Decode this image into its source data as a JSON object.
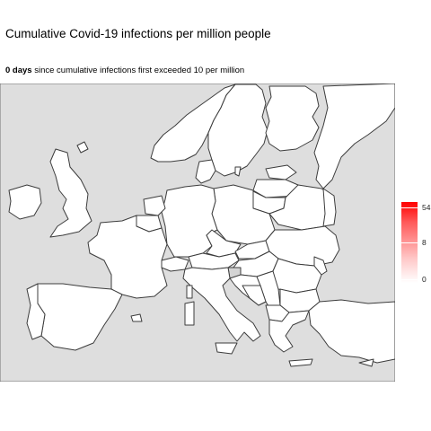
{
  "title": "Cumulative Covid-19 infections per million people",
  "subtitle": {
    "bold": "0 days",
    "rest": " since cumulative infections first exceeded 10 per million"
  },
  "legend": {
    "ticks": [
      "54",
      "8",
      "0"
    ],
    "colors": {
      "high": "#ff0000",
      "low": "#ffffff"
    }
  },
  "map_colors": {
    "background": "#dedede",
    "land": "#ffffff",
    "border": "#3c3c3c",
    "highlight": "#d0d0d0"
  }
}
